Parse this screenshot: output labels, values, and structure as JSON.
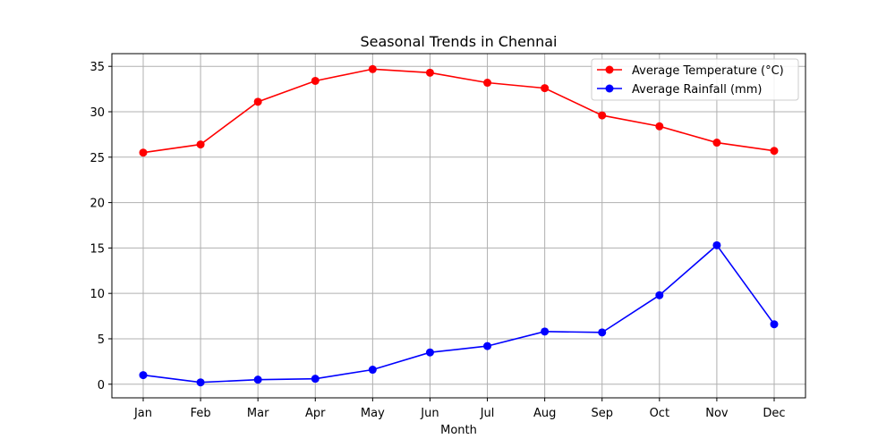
{
  "chart_data": {
    "type": "line",
    "title": "Seasonal Trends in Chennai",
    "xlabel": "Month",
    "ylabel": "",
    "categories": [
      "Jan",
      "Feb",
      "Mar",
      "Apr",
      "May",
      "Jun",
      "Jul",
      "Aug",
      "Sep",
      "Oct",
      "Nov",
      "Dec"
    ],
    "ylim": [
      -1.5,
      36.4
    ],
    "yticks": [
      0,
      5,
      10,
      15,
      20,
      25,
      30,
      35
    ],
    "grid": true,
    "legend_position": "top-right",
    "series": [
      {
        "name": "Average Temperature (°C)",
        "color": "#ff0000",
        "marker": "circle",
        "values": [
          25.5,
          26.4,
          31.1,
          33.4,
          34.7,
          34.3,
          33.2,
          32.6,
          29.6,
          28.4,
          26.6,
          25.7
        ]
      },
      {
        "name": "Average Rainfall (mm)",
        "color": "#0000ff",
        "marker": "circle",
        "values": [
          1.0,
          0.2,
          0.5,
          0.6,
          1.6,
          3.5,
          4.2,
          5.8,
          5.7,
          9.8,
          15.3,
          6.6
        ]
      }
    ]
  }
}
